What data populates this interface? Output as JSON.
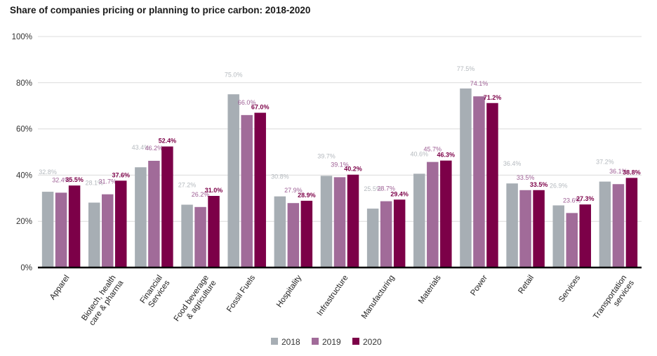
{
  "chart_data": {
    "type": "bar",
    "title": "Share of companies pricing or planning to price carbon: 2018-2020",
    "xlabel": "",
    "ylabel": "",
    "ylim": [
      0,
      100
    ],
    "yticks": [
      0,
      20,
      40,
      60,
      80,
      100
    ],
    "ytick_labels": [
      "0%",
      "20%",
      "40%",
      "60%",
      "80%",
      "100%"
    ],
    "categories": [
      [
        "Apparel"
      ],
      [
        "Biotech, health",
        "care & pharma"
      ],
      [
        "Financial",
        "Services"
      ],
      [
        "Food beverage",
        "& agriculture"
      ],
      [
        "Fossil Fuels"
      ],
      [
        "Hospitality"
      ],
      [
        "Infrastructure"
      ],
      [
        "Manufacturing"
      ],
      [
        "Materials"
      ],
      [
        "Power"
      ],
      [
        "Retail"
      ],
      [
        "Services"
      ],
      [
        "Transportation",
        "services"
      ]
    ],
    "series": [
      {
        "name": "2018",
        "color": "#a7aeb4",
        "label_color": "#b4b9be",
        "values": [
          32.8,
          28.1,
          43.4,
          27.2,
          75.0,
          30.8,
          39.7,
          25.5,
          40.6,
          77.5,
          36.4,
          26.9,
          37.2
        ],
        "value_labels": [
          "32.8%",
          "28.1%",
          "43.4%",
          "27.2%",
          "75.0%",
          "30.8%",
          "39.7%",
          "25.5%",
          "40.6%",
          "77.5%",
          "36.4%",
          "26.9%",
          "37.2%"
        ]
      },
      {
        "name": "2019",
        "color": "#a16b99",
        "label_color": "#9d5e94",
        "values": [
          32.4,
          31.7,
          46.2,
          26.2,
          66.0,
          27.9,
          39.1,
          28.7,
          45.7,
          74.1,
          33.5,
          23.6,
          36.1
        ],
        "value_labels": [
          "32.4%",
          "31.7%",
          "46.2%",
          "26.2%",
          "66.0%",
          "27.9%",
          "39.1%",
          "28.7%",
          "45.7%",
          "74.1%",
          "33.5%",
          "23.6%",
          "36.1%"
        ]
      },
      {
        "name": "2020",
        "color": "#7c0048",
        "label_color": "#7c0048",
        "values": [
          35.5,
          37.6,
          52.4,
          31.0,
          67.0,
          28.9,
          40.2,
          29.4,
          46.3,
          71.2,
          33.5,
          27.3,
          38.8
        ],
        "value_labels": [
          "35.5%",
          "37.6%",
          "52.4%",
          "31.0%",
          "67.0%",
          "28.9%",
          "40.2%",
          "29.4%",
          "46.3%",
          "71.2%",
          "33.5%",
          "27.3%",
          "38.8%"
        ]
      }
    ],
    "legend_position": "bottom-center",
    "grid": true
  }
}
